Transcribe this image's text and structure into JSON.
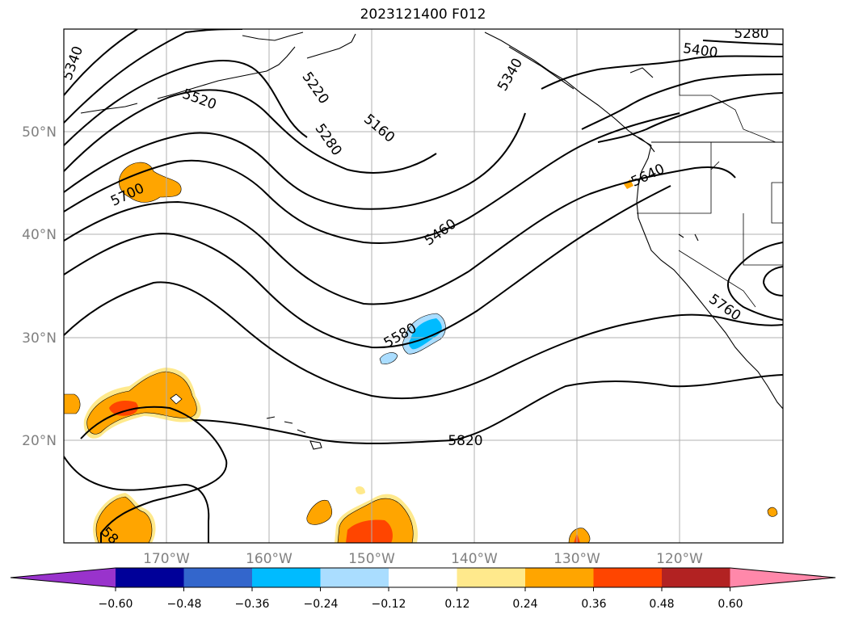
{
  "title": "2023121400 F012",
  "lat_labels": [
    "50°N",
    "40°N",
    "30°N",
    "20°N"
  ],
  "lon_labels": [
    "170°W",
    "160°W",
    "150°W",
    "140°W",
    "130°W",
    "120°W"
  ],
  "contour_labels": [
    "5340",
    "5520",
    "5220",
    "5280",
    "5160",
    "5340",
    "5400",
    "5280",
    "5700",
    "5460",
    "5640",
    "5580",
    "5760",
    "5820",
    "58"
  ],
  "colorbar": {
    "colors": [
      "#9933cc",
      "#000099",
      "#3366cc",
      "#00bbff",
      "#aaddff",
      "#ffffff",
      "#ffe98c",
      "#ffa500",
      "#ff4500",
      "#b22222",
      "#ff88aa"
    ],
    "tick_labels": [
      "−0.60",
      "−0.48",
      "−0.36",
      "−0.24",
      "−0.12",
      "0.12",
      "0.24",
      "0.36",
      "0.48",
      "0.60"
    ]
  },
  "colors": {
    "contour": "#000000",
    "grid": "#b0b0b0",
    "orange": "#ffa500",
    "red": "#ff4500",
    "yellow": "#ffe98c",
    "cyan": "#00bbff",
    "lightblue": "#aaddff"
  }
}
